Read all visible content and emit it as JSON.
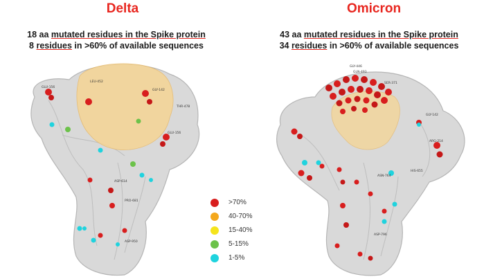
{
  "panels": [
    {
      "title": "Delta",
      "line1": {
        "count": "18 aa",
        "underlined": "mutated residues in the Spike protein"
      },
      "line2": {
        "count": "8",
        "underlined": "residues",
        "rest": "in >60% of available sequences"
      },
      "residue_labels": [
        "GLU-156",
        "GLY-142",
        "THR-478",
        "GLU-156",
        "LEU-452",
        "ASP-950",
        "ASP-614",
        "PRO-681"
      ]
    },
    {
      "title": "Omicron",
      "line1": {
        "count": "43 aa",
        "underlined": "mutated residues in the Spike protein"
      },
      "line2": {
        "count": "34",
        "underlined": "residues",
        "rest": "in >60% of available sequences"
      },
      "residue_labels": [
        "GLY-446",
        "GLN-493",
        "SER-371",
        "GLY-142",
        "ARG-214",
        "HIS-655",
        "ASN-764",
        "ASP-796"
      ]
    }
  ],
  "legend": [
    {
      "label": ">70%",
      "color": "#d81e1e"
    },
    {
      "label": "40-70%",
      "color": "#f4a81d"
    },
    {
      "label": "15-40%",
      "color": "#f5e41c"
    },
    {
      "label": "5-15%",
      "color": "#6cc24a"
    },
    {
      "label": "1-5%",
      "color": "#1fd3de"
    }
  ]
}
